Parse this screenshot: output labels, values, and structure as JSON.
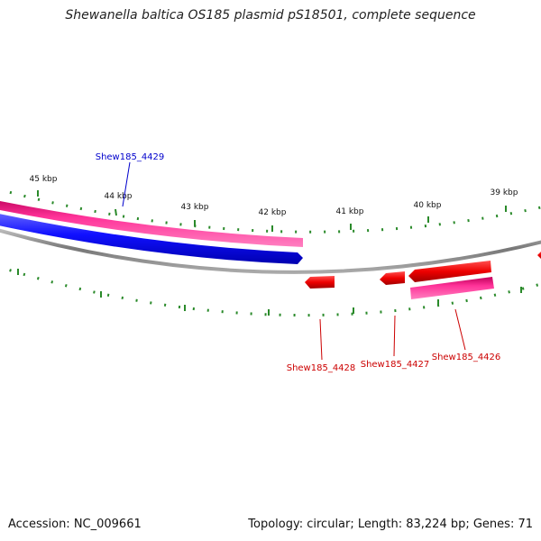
{
  "title": "Shewanella baltica OS185 plasmid pS18501, complete sequence",
  "footer": {
    "accession": "Accession: NC_009661",
    "summary": "Topology: circular; Length: 83,224 bp; Genes: 71"
  },
  "ticks": [
    {
      "label": "45 kbp",
      "kbp": 45
    },
    {
      "label": "44 kbp",
      "kbp": 44
    },
    {
      "label": "43 kbp",
      "kbp": 43
    },
    {
      "label": "42 kbp",
      "kbp": 42
    },
    {
      "label": "41 kbp",
      "kbp": 41
    },
    {
      "label": "40 kbp",
      "kbp": 40
    },
    {
      "label": "39 kbp",
      "kbp": 39
    }
  ],
  "gene_labels": [
    {
      "name": "Shew185_4429",
      "color": "#0000cc"
    },
    {
      "name": "Shew185_4428",
      "color": "#cc0000"
    },
    {
      "name": "Shew185_4427",
      "color": "#cc0000"
    },
    {
      "name": "Shew185_4426",
      "color": "#cc0000"
    }
  ],
  "colors": {
    "forward_cds": "#1a1aff",
    "forward_gene": "#ff3399",
    "reverse_cds": "#ee1111",
    "reverse_gene": "#ff3399",
    "backbone": "#888888",
    "ticks": "#2a8a2a"
  }
}
